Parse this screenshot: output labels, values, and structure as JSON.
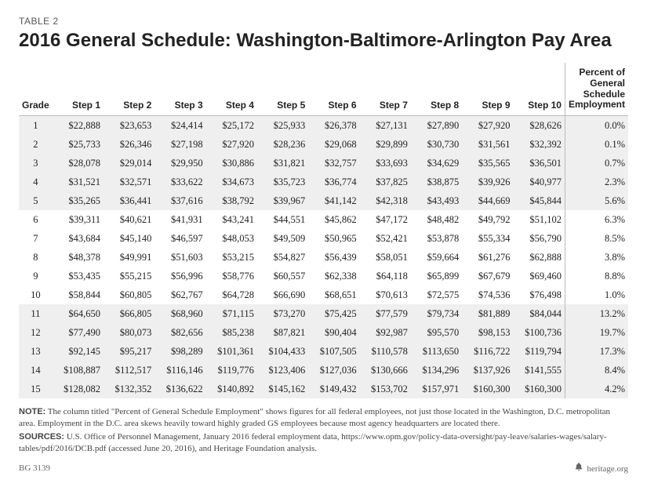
{
  "table_label": "TABLE 2",
  "title": "2016 General Schedule: Washington-Baltimore-Arlington Pay Area",
  "columns": [
    "Grade",
    "Step 1",
    "Step 2",
    "Step 3",
    "Step 4",
    "Step 5",
    "Step 6",
    "Step 7",
    "Step 8",
    "Step 9",
    "Step 10"
  ],
  "pct_header_lines": [
    "Percent of",
    "General",
    "Schedule",
    "Employment"
  ],
  "rows": [
    {
      "grade": "1",
      "steps": [
        "$22,888",
        "$23,653",
        "$24,414",
        "$25,172",
        "$25,933",
        "$26,378",
        "$27,131",
        "$27,890",
        "$27,920",
        "$28,626"
      ],
      "pct": "0.0%"
    },
    {
      "grade": "2",
      "steps": [
        "$25,733",
        "$26,346",
        "$27,198",
        "$27,920",
        "$28,236",
        "$29,068",
        "$29,899",
        "$30,730",
        "$31,561",
        "$32,392"
      ],
      "pct": "0.1%"
    },
    {
      "grade": "3",
      "steps": [
        "$28,078",
        "$29,014",
        "$29,950",
        "$30,886",
        "$31,821",
        "$32,757",
        "$33,693",
        "$34,629",
        "$35,565",
        "$36,501"
      ],
      "pct": "0.7%"
    },
    {
      "grade": "4",
      "steps": [
        "$31,521",
        "$32,571",
        "$33,622",
        "$34,673",
        "$35,723",
        "$36,774",
        "$37,825",
        "$38,875",
        "$39,926",
        "$40,977"
      ],
      "pct": "2.3%"
    },
    {
      "grade": "5",
      "steps": [
        "$35,265",
        "$36,441",
        "$37,616",
        "$38,792",
        "$39,967",
        "$41,142",
        "$42,318",
        "$43,493",
        "$44,669",
        "$45,844"
      ],
      "pct": "5.6%"
    },
    {
      "grade": "6",
      "steps": [
        "$39,311",
        "$40,621",
        "$41,931",
        "$43,241",
        "$44,551",
        "$45,862",
        "$47,172",
        "$48,482",
        "$49,792",
        "$51,102"
      ],
      "pct": "6.3%"
    },
    {
      "grade": "7",
      "steps": [
        "$43,684",
        "$45,140",
        "$46,597",
        "$48,053",
        "$49,509",
        "$50,965",
        "$52,421",
        "$53,878",
        "$55,334",
        "$56,790"
      ],
      "pct": "8.5%"
    },
    {
      "grade": "8",
      "steps": [
        "$48,378",
        "$49,991",
        "$51,603",
        "$53,215",
        "$54,827",
        "$56,439",
        "$58,051",
        "$59,664",
        "$61,276",
        "$62,888"
      ],
      "pct": "3.8%"
    },
    {
      "grade": "9",
      "steps": [
        "$53,435",
        "$55,215",
        "$56,996",
        "$58,776",
        "$60,557",
        "$62,338",
        "$64,118",
        "$65,899",
        "$67,679",
        "$69,460"
      ],
      "pct": "8.8%"
    },
    {
      "grade": "10",
      "steps": [
        "$58,844",
        "$60,805",
        "$62,767",
        "$64,728",
        "$66,690",
        "$68,651",
        "$70,613",
        "$72,575",
        "$74,536",
        "$76,498"
      ],
      "pct": "1.0%"
    },
    {
      "grade": "11",
      "steps": [
        "$64,650",
        "$66,805",
        "$68,960",
        "$71,115",
        "$73,270",
        "$75,425",
        "$77,579",
        "$79,734",
        "$81,889",
        "$84,044"
      ],
      "pct": "13.2%"
    },
    {
      "grade": "12",
      "steps": [
        "$77,490",
        "$80,073",
        "$82,656",
        "$85,238",
        "$87,821",
        "$90,404",
        "$92,987",
        "$95,570",
        "$98,153",
        "$100,736"
      ],
      "pct": "19.7%"
    },
    {
      "grade": "13",
      "steps": [
        "$92,145",
        "$95,217",
        "$98,289",
        "$101,361",
        "$104,433",
        "$107,505",
        "$110,578",
        "$113,650",
        "$116,722",
        "$119,794"
      ],
      "pct": "17.3%"
    },
    {
      "grade": "14",
      "steps": [
        "$108,887",
        "$112,517",
        "$116,146",
        "$119,776",
        "$123,406",
        "$127,036",
        "$130,666",
        "$134,296",
        "$137,926",
        "$141,555"
      ],
      "pct": "8.4%"
    },
    {
      "grade": "15",
      "steps": [
        "$128,082",
        "$132,352",
        "$136,622",
        "$140,892",
        "$145,162",
        "$149,432",
        "$153,702",
        "$157,971",
        "$160,300",
        "$160,300"
      ],
      "pct": "4.2%"
    }
  ],
  "note_label": "NOTE:",
  "note_text": " The column titled \"Percent of General Schedule Employment\" shows figures for all federal employees, not just those located in the Washington, D.C. metropolitan area. Employment in the D.C. area skews heavily toward highly graded GS employees because most agency headquarters are located there.",
  "sources_label": "SOURCES:",
  "sources_text": " U.S. Office of Personnel Management, January 2016 federal employment data, https://www.opm.gov/policy-data-oversight/pay-leave/salaries-wages/salary-tables/pdf/2016/DCB.pdf (accessed June 20, 2016), and Heritage Foundation analysis.",
  "footer_left": "BG 3139",
  "footer_right": "heritage.org",
  "shaded_rows": [
    0,
    1,
    2,
    3,
    4,
    10,
    11,
    12,
    13,
    14
  ],
  "colors": {
    "shade": "#efefef",
    "border": "#bbbbbb",
    "text": "#222222",
    "muted": "#555555"
  }
}
